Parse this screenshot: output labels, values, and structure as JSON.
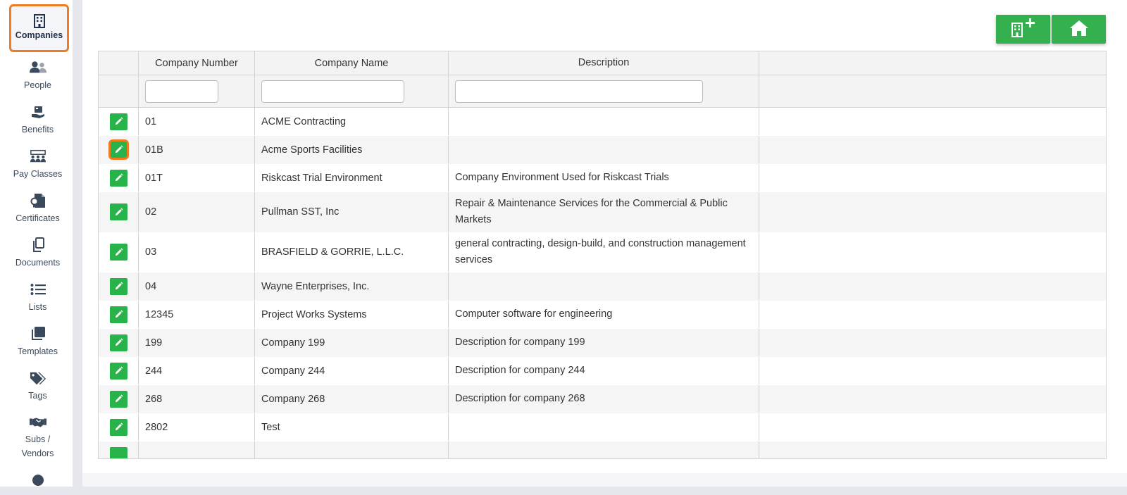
{
  "sidebar": {
    "items": [
      {
        "label": "Companies",
        "icon": "building-icon",
        "active": true
      },
      {
        "label": "People",
        "icon": "people-icon"
      },
      {
        "label": "Benefits",
        "icon": "benefits-icon"
      },
      {
        "label": "Pay Classes",
        "icon": "pay-classes-icon"
      },
      {
        "label": "Certificates",
        "icon": "certificate-icon"
      },
      {
        "label": "Documents",
        "icon": "documents-icon"
      },
      {
        "label": "Lists",
        "icon": "list-icon"
      },
      {
        "label": "Templates",
        "icon": "templates-icon"
      },
      {
        "label": "Tags",
        "icon": "tags-icon"
      },
      {
        "label_line1": "Subs /",
        "label_line2": "Vendors",
        "icon": "handshake-icon"
      }
    ]
  },
  "toolbar": {
    "add_company_icon": "add-company-icon",
    "home_icon": "home-icon"
  },
  "table": {
    "columns": [
      "",
      "Company Number",
      "Company Name",
      "Description",
      ""
    ],
    "filters": {
      "number": "",
      "name": "",
      "description": ""
    },
    "rows": [
      {
        "number": "01",
        "name": "ACME Contracting",
        "description": ""
      },
      {
        "number": "01B",
        "name": "Acme Sports Facilities",
        "description": ""
      },
      {
        "number": "01T",
        "name": "Riskcast Trial Environment",
        "description": "Company Environment Used for Riskcast Trials"
      },
      {
        "number": "02",
        "name": "Pullman SST, Inc",
        "description": "Repair & Maintenance Services for the Commercial & Public Markets"
      },
      {
        "number": "03",
        "name": "BRASFIELD & GORRIE, L.L.C.",
        "description": "general contracting, design-build, and construction management services"
      },
      {
        "number": "04",
        "name": "Wayne Enterprises, Inc.",
        "description": ""
      },
      {
        "number": "12345",
        "name": "Project Works Systems",
        "description": "Computer software for engineering"
      },
      {
        "number": "199",
        "name": "Company 199",
        "description": "Description for company 199"
      },
      {
        "number": "244",
        "name": "Company 244",
        "description": "Description for company 244"
      },
      {
        "number": "268",
        "name": "Company 268",
        "description": "Description for company 268"
      },
      {
        "number": "2802",
        "name": "Test",
        "description": ""
      }
    ]
  },
  "colors": {
    "accent": "#f07c22",
    "green": "#28b24a",
    "sidebar_text": "#3a4a5c"
  }
}
